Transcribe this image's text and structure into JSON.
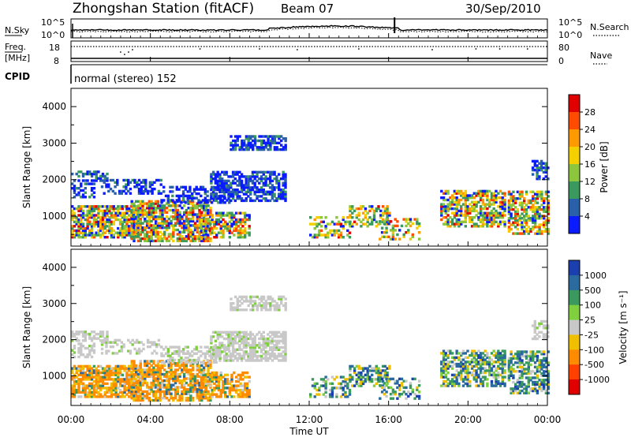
{
  "header": {
    "title": "Zhongshan Station (fitACF)",
    "beam": "Beam 07",
    "date": "30/Sep/2010"
  },
  "chart_data": [
    {
      "type": "line",
      "panel": "noise",
      "left_label": "N.Sky",
      "right_label": "N.Search",
      "left_ticks": [
        "10^5",
        "10^0"
      ],
      "right_ticks": [
        "10^5",
        "10^0"
      ]
    },
    {
      "type": "line",
      "panel": "frequency",
      "left_label": "Freq.",
      "left_unit": "[MHz]",
      "right_label": "Nave",
      "left_ticks": [
        "18",
        "8"
      ],
      "right_ticks": [
        "80",
        "0"
      ],
      "ylim_left": [
        8,
        18
      ],
      "ylim_right": [
        0,
        80
      ]
    },
    {
      "type": "table",
      "panel": "cpid",
      "label": "CPID",
      "value": "normal (stereo) 152"
    },
    {
      "type": "heatmap",
      "panel": "power",
      "ylabel": "Slant Range [km]",
      "colorbar_label": "Power [dB]",
      "colorbar_ticks": [
        "28",
        "24",
        "20",
        "16",
        "12",
        "8",
        "4"
      ],
      "colorbar_colors": [
        "#e10000",
        "#ff4c00",
        "#ff9900",
        "#f5d000",
        "#8cc63c",
        "#3a9a5e",
        "#2a5faa",
        "#0a1cff"
      ],
      "yticks": [
        1000,
        2000,
        3000,
        4000
      ],
      "ylim": [
        180,
        4500
      ]
    },
    {
      "type": "heatmap",
      "panel": "velocity",
      "ylabel": "Slant Range [km]",
      "colorbar_label": "Velocity [m s⁻¹]",
      "colorbar_ticks": [
        "1000",
        "500",
        "100",
        "25",
        "-25",
        "-100",
        "-500",
        "-1000"
      ],
      "colorbar_colors": [
        "#1b3fae",
        "#2a6a9e",
        "#3a9a5e",
        "#7fcf3f",
        "#c8c8c8",
        "#f0c000",
        "#ff8c00",
        "#ff4000",
        "#e00000"
      ],
      "yticks": [
        1000,
        2000,
        3000,
        4000
      ],
      "ylim": [
        180,
        4500
      ]
    }
  ],
  "time_axis": {
    "xlabel": "Time UT",
    "xticks": [
      "00:00",
      "04:00",
      "08:00",
      "12:00",
      "16:00",
      "20:00",
      "00:00"
    ],
    "xlim_hours": [
      0,
      24
    ]
  }
}
